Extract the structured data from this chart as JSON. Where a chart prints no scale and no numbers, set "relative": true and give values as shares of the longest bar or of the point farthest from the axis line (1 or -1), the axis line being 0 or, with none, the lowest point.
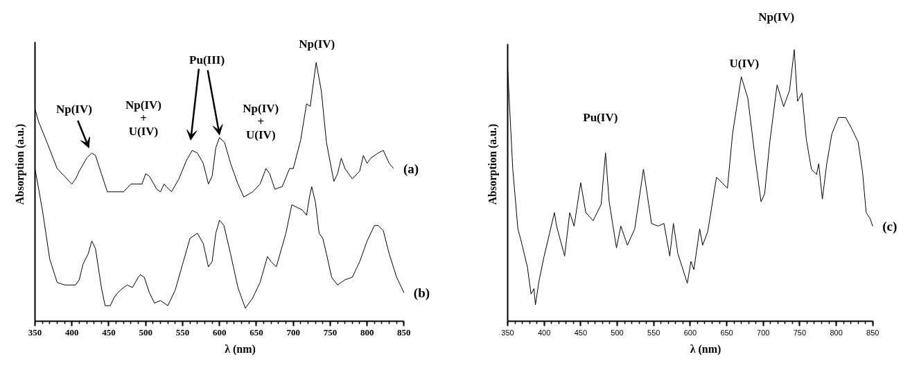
{
  "chart_data": [
    {
      "type": "line",
      "relative": true,
      "xlabel": "λ (nm)",
      "ylabel": "Absorption (a.u.)",
      "xlim": [
        350,
        850
      ],
      "xticks": [
        350,
        400,
        450,
        500,
        550,
        600,
        650,
        700,
        750,
        800,
        850
      ],
      "tick_labels": "x",
      "grid": false,
      "annotations": [
        "Np(IV)",
        "Np(IV)\n+\nU(IV)",
        "Pu(III)",
        "Np(IV)\n+\nU(IV)",
        "Np(IV)"
      ],
      "series": [
        {
          "name": "(a)",
          "color": "#000000",
          "x": [
            350,
            355,
            365,
            380,
            390,
            400,
            405,
            410,
            420,
            427,
            432,
            440,
            448,
            460,
            470,
            480,
            487,
            495,
            500,
            505,
            515,
            520,
            525,
            528,
            535,
            545,
            555,
            563,
            570,
            578,
            585,
            590,
            595,
            600,
            607,
            615,
            625,
            633,
            645,
            655,
            663,
            668,
            675,
            685,
            695,
            700,
            710,
            718,
            723,
            731,
            738,
            745,
            755,
            760,
            765,
            770,
            780,
            790,
            795,
            800,
            805,
            815,
            822,
            830,
            836
          ],
          "values": [
            0.82,
            0.77,
            0.7,
            0.59,
            0.56,
            0.53,
            0.55,
            0.58,
            0.63,
            0.65,
            0.64,
            0.57,
            0.5,
            0.5,
            0.5,
            0.53,
            0.53,
            0.53,
            0.57,
            0.56,
            0.51,
            0.5,
            0.53,
            0.52,
            0.5,
            0.55,
            0.62,
            0.66,
            0.65,
            0.61,
            0.53,
            0.56,
            0.67,
            0.71,
            0.69,
            0.61,
            0.53,
            0.48,
            0.5,
            0.53,
            0.59,
            0.57,
            0.51,
            0.52,
            0.59,
            0.59,
            0.7,
            0.84,
            0.83,
            1.0,
            0.89,
            0.69,
            0.54,
            0.57,
            0.63,
            0.59,
            0.55,
            0.58,
            0.64,
            0.61,
            0.63,
            0.65,
            0.66,
            0.61,
            0.59
          ]
        },
        {
          "name": "(b)",
          "color": "#000000",
          "x": [
            350,
            355,
            360,
            370,
            380,
            390,
            400,
            405,
            410,
            415,
            422,
            427,
            432,
            440,
            445,
            452,
            457,
            462,
            470,
            475,
            482,
            490,
            493,
            498,
            505,
            512,
            520,
            530,
            540,
            550,
            560,
            570,
            578,
            585,
            590,
            595,
            600,
            606,
            615,
            625,
            635,
            645,
            655,
            660,
            665,
            670,
            677,
            690,
            698,
            705,
            712,
            718,
            722,
            725,
            730,
            735,
            740,
            745,
            752,
            760,
            770,
            780,
            790,
            800,
            810,
            815,
            822,
            830,
            840,
            850
          ],
          "values": [
            0.59,
            0.51,
            0.43,
            0.24,
            0.15,
            0.14,
            0.14,
            0.14,
            0.16,
            0.22,
            0.26,
            0.31,
            0.28,
            0.13,
            0.06,
            0.06,
            0.09,
            0.11,
            0.13,
            0.14,
            0.13,
            0.17,
            0.18,
            0.17,
            0.11,
            0.07,
            0.08,
            0.06,
            0.12,
            0.22,
            0.32,
            0.34,
            0.3,
            0.21,
            0.23,
            0.34,
            0.39,
            0.37,
            0.26,
            0.13,
            0.05,
            0.09,
            0.15,
            0.2,
            0.25,
            0.23,
            0.21,
            0.34,
            0.45,
            0.44,
            0.43,
            0.41,
            0.48,
            0.52,
            0.46,
            0.34,
            0.32,
            0.26,
            0.17,
            0.14,
            0.16,
            0.17,
            0.23,
            0.31,
            0.37,
            0.37,
            0.35,
            0.26,
            0.17,
            0.11
          ]
        }
      ]
    },
    {
      "type": "line",
      "relative": true,
      "xlabel": "λ (nm)",
      "ylabel": "Absorption (a.u.)",
      "xlim": [
        350,
        850
      ],
      "xticks": [
        350,
        400,
        450,
        500,
        550,
        600,
        650,
        700,
        750,
        800,
        850
      ],
      "tick_labels": "x",
      "grid": false,
      "annotations": [
        "Pu(IV)",
        "U(IV)",
        "Np(IV)"
      ],
      "series": [
        {
          "name": "(c)",
          "color": "#000000",
          "x": [
            350,
            357,
            364,
            368,
            377,
            382,
            386,
            388,
            393,
            400,
            407,
            414,
            417,
            428,
            435,
            441,
            450,
            457,
            467,
            478,
            484,
            489,
            499,
            505,
            514,
            524,
            536,
            547,
            556,
            564,
            572,
            577,
            583,
            596,
            601,
            605,
            613,
            617,
            624,
            636,
            651,
            658,
            670,
            679,
            688,
            697,
            702,
            709,
            719,
            728,
            736,
            742.5,
            747,
            753,
            759,
            766,
            773,
            776,
            781,
            787,
            794,
            803,
            813,
            821,
            830,
            836,
            841,
            846,
            850
          ],
          "values": [
            0.93,
            0.56,
            0.34,
            0.3,
            0.2,
            0.1,
            0.12,
            0.06,
            0.15,
            0.24,
            0.32,
            0.4,
            0.35,
            0.24,
            0.4,
            0.35,
            0.51,
            0.4,
            0.37,
            0.43,
            0.62,
            0.44,
            0.27,
            0.35,
            0.28,
            0.34,
            0.56,
            0.36,
            0.35,
            0.36,
            0.24,
            0.36,
            0.25,
            0.14,
            0.22,
            0.19,
            0.34,
            0.28,
            0.33,
            0.53,
            0.49,
            0.69,
            0.9,
            0.82,
            0.62,
            0.44,
            0.47,
            0.66,
            0.87,
            0.79,
            0.85,
            1.0,
            0.81,
            0.84,
            0.67,
            0.56,
            0.54,
            0.58,
            0.45,
            0.58,
            0.69,
            0.75,
            0.75,
            0.71,
            0.66,
            0.55,
            0.4,
            0.38,
            0.35
          ]
        }
      ]
    }
  ]
}
